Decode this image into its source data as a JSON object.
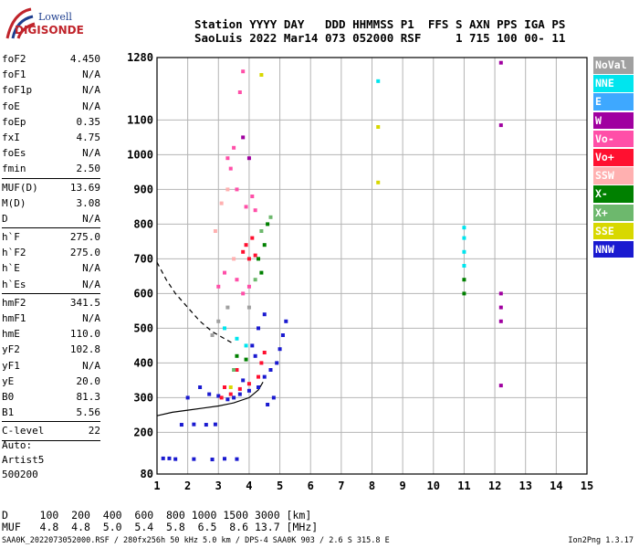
{
  "logo": {
    "line1": "Lowell",
    "line2": "DIGISONDE"
  },
  "header": {
    "line1": "Station YYYY DAY   DDD HHMMSS P1  FFS S AXN PPS IGA PS",
    "line2": "SaoLuis 2022 Mar14 073 052000 RSF     1 715 100 00- 11"
  },
  "params": [
    {
      "label": "foF2",
      "value": "4.450"
    },
    {
      "label": "foF1",
      "value": "N/A"
    },
    {
      "label": "foF1p",
      "value": "N/A"
    },
    {
      "label": "foE",
      "value": "N/A"
    },
    {
      "label": "foEp",
      "value": "0.35"
    },
    {
      "label": "fxI",
      "value": "4.75"
    },
    {
      "label": "foEs",
      "value": "N/A"
    },
    {
      "label": "fmin",
      "value": "2.50"
    },
    {
      "sep": true
    },
    {
      "label": "MUF(D)",
      "value": "13.69"
    },
    {
      "label": "M(D)",
      "value": "3.08"
    },
    {
      "label": "D",
      "value": "N/A"
    },
    {
      "sep": true
    },
    {
      "label": "h`F",
      "value": "275.0"
    },
    {
      "label": "h`F2",
      "value": "275.0"
    },
    {
      "label": "h`E",
      "value": "N/A"
    },
    {
      "label": "h`Es",
      "value": "N/A"
    },
    {
      "sep": true
    },
    {
      "label": "hmF2",
      "value": "341.5"
    },
    {
      "label": "hmF1",
      "value": "N/A"
    },
    {
      "label": "hmE",
      "value": "110.0"
    },
    {
      "label": "yF2",
      "value": "102.8"
    },
    {
      "label": "yF1",
      "value": "N/A"
    },
    {
      "label": "yE",
      "value": "20.0"
    },
    {
      "label": "B0",
      "value": "81.3"
    },
    {
      "label": "B1",
      "value": "5.56"
    },
    {
      "sep": true
    },
    {
      "label": "C-level",
      "value": "22"
    },
    {
      "sep": true
    }
  ],
  "auto": {
    "line1": "Auto:",
    "line2": "Artist5",
    "line3": "500200"
  },
  "legend": [
    {
      "label": "NoVal",
      "color": "#a0a0a0"
    },
    {
      "label": "NNE",
      "color": "#00e5ee"
    },
    {
      "label": "E",
      "color": "#3ea8ff"
    },
    {
      "label": "W",
      "color": "#a000a0"
    },
    {
      "label": "Vo-",
      "color": "#ff4fa8"
    },
    {
      "label": "Vo+",
      "color": "#ff1030"
    },
    {
      "label": "SSW",
      "color": "#ffb0b0"
    },
    {
      "label": "X-",
      "color": "#008000"
    },
    {
      "label": "X+",
      "color": "#6db86d"
    },
    {
      "label": "SSE",
      "color": "#d8d800"
    },
    {
      "label": "NNW",
      "color": "#1a1ad0"
    }
  ],
  "dtable": {
    "line1": "D     100  200  400  600  800 1000 1500 3000 [km]",
    "line2": "MUF   4.8  4.8  5.0  5.4  5.8  6.5  8.6 13.7 [MHz]"
  },
  "footer": "SAA0K_2022073052000.RSF / 280fx256h 50 kHz 5.0 km / DPS-4 SAA0K 903 / 2.6 S 315.8 E",
  "version": "Ion2Png 1.3.17",
  "chart_data": {
    "type": "scatter",
    "title": "",
    "xlabel": "",
    "ylabel": "",
    "xlim": [
      1,
      15
    ],
    "ylim": [
      80,
      1280
    ],
    "x_ticks": [
      1,
      2,
      3,
      4,
      5,
      6,
      7,
      8,
      9,
      10,
      11,
      12,
      13,
      14,
      15
    ],
    "y_ticks": [
      80,
      200,
      300,
      400,
      500,
      600,
      700,
      800,
      900,
      1000,
      1100,
      1280
    ],
    "grid": true,
    "legend_position": "right",
    "series": [
      {
        "name": "NNW",
        "color": "#1a1ad0",
        "points": [
          [
            1.2,
            125
          ],
          [
            1.4,
            125
          ],
          [
            1.6,
            123
          ],
          [
            2.2,
            123
          ],
          [
            2.8,
            122
          ],
          [
            3.2,
            124
          ],
          [
            3.6,
            123
          ],
          [
            1.8,
            222
          ],
          [
            2.2,
            223
          ],
          [
            2.6,
            222
          ],
          [
            2.9,
            223
          ],
          [
            3.5,
            300
          ],
          [
            3.7,
            310
          ],
          [
            4.0,
            320
          ],
          [
            4.3,
            330
          ],
          [
            4.5,
            360
          ],
          [
            4.7,
            380
          ],
          [
            4.9,
            400
          ],
          [
            5.0,
            440
          ],
          [
            5.1,
            480
          ],
          [
            5.2,
            520
          ],
          [
            4.8,
            300
          ],
          [
            4.6,
            280
          ],
          [
            3.3,
            295
          ],
          [
            3.0,
            305
          ],
          [
            2.7,
            310
          ],
          [
            4.1,
            450
          ],
          [
            4.3,
            500
          ],
          [
            4.5,
            540
          ],
          [
            2.4,
            330
          ],
          [
            2.0,
            300
          ],
          [
            3.8,
            350
          ],
          [
            4.2,
            420
          ]
        ]
      },
      {
        "name": "Vo+",
        "color": "#ff1030",
        "points": [
          [
            3.1,
            300
          ],
          [
            3.4,
            310
          ],
          [
            3.7,
            325
          ],
          [
            4.0,
            340
          ],
          [
            4.3,
            360
          ],
          [
            4.4,
            400
          ],
          [
            4.5,
            430
          ],
          [
            3.9,
            740
          ],
          [
            4.1,
            760
          ],
          [
            3.8,
            720
          ],
          [
            4.0,
            700
          ],
          [
            4.2,
            710
          ],
          [
            3.6,
            380
          ],
          [
            3.2,
            330
          ]
        ]
      },
      {
        "name": "Vo-",
        "color": "#ff4fa8",
        "points": [
          [
            3.9,
            850
          ],
          [
            3.6,
            900
          ],
          [
            3.4,
            960
          ],
          [
            3.5,
            1020
          ],
          [
            3.3,
            990
          ],
          [
            3.0,
            620
          ],
          [
            3.2,
            660
          ],
          [
            3.6,
            640
          ],
          [
            3.8,
            600
          ],
          [
            4.0,
            620
          ],
          [
            4.2,
            840
          ],
          [
            4.1,
            880
          ],
          [
            3.7,
            1180
          ],
          [
            3.8,
            1240
          ]
        ]
      },
      {
        "name": "NNE",
        "color": "#00e5ee",
        "points": [
          [
            8.2,
            1212
          ],
          [
            11.0,
            790
          ],
          [
            11.0,
            760
          ],
          [
            11.0,
            720
          ],
          [
            11.0,
            680
          ],
          [
            3.2,
            500
          ],
          [
            3.6,
            470
          ],
          [
            3.9,
            450
          ]
        ]
      },
      {
        "name": "W",
        "color": "#a000a0",
        "points": [
          [
            12.2,
            1265
          ],
          [
            12.2,
            1085
          ],
          [
            12.2,
            600
          ],
          [
            12.2,
            560
          ],
          [
            12.2,
            520
          ],
          [
            12.2,
            335
          ],
          [
            4.0,
            990
          ],
          [
            3.8,
            1050
          ]
        ]
      },
      {
        "name": "X-",
        "color": "#008000",
        "points": [
          [
            4.3,
            700
          ],
          [
            4.5,
            740
          ],
          [
            4.6,
            800
          ],
          [
            4.4,
            660
          ],
          [
            3.6,
            420
          ],
          [
            3.9,
            410
          ],
          [
            11.0,
            600
          ],
          [
            11.0,
            640
          ]
        ]
      },
      {
        "name": "X+",
        "color": "#6db86d",
        "points": [
          [
            4.4,
            780
          ],
          [
            4.7,
            820
          ],
          [
            4.2,
            640
          ],
          [
            3.5,
            380
          ]
        ]
      },
      {
        "name": "SSE",
        "color": "#d8d800",
        "points": [
          [
            8.2,
            920
          ],
          [
            8.2,
            1080
          ],
          [
            4.4,
            1230
          ],
          [
            3.4,
            330
          ]
        ]
      },
      {
        "name": "SSW",
        "color": "#ffb0b0",
        "points": [
          [
            3.3,
            900
          ],
          [
            3.1,
            860
          ],
          [
            2.9,
            780
          ],
          [
            3.5,
            700
          ]
        ]
      },
      {
        "name": "NoVal",
        "color": "#a0a0a0",
        "points": [
          [
            3.0,
            520
          ],
          [
            3.3,
            560
          ],
          [
            2.8,
            480
          ],
          [
            4.0,
            560
          ]
        ]
      }
    ],
    "curves": [
      {
        "name": "profile",
        "style": "solid",
        "points": [
          [
            1.0,
            248
          ],
          [
            1.5,
            258
          ],
          [
            2.0,
            264
          ],
          [
            2.5,
            270
          ],
          [
            3.0,
            276
          ],
          [
            3.5,
            285
          ],
          [
            4.0,
            300
          ],
          [
            4.3,
            322
          ],
          [
            4.45,
            345
          ]
        ]
      },
      {
        "name": "muf-dashed",
        "style": "dashed",
        "points": [
          [
            1.0,
            690
          ],
          [
            1.3,
            640
          ],
          [
            1.6,
            600
          ],
          [
            2.0,
            560
          ],
          [
            2.4,
            520
          ],
          [
            2.8,
            490
          ],
          [
            3.2,
            470
          ],
          [
            3.5,
            455
          ]
        ]
      }
    ]
  }
}
